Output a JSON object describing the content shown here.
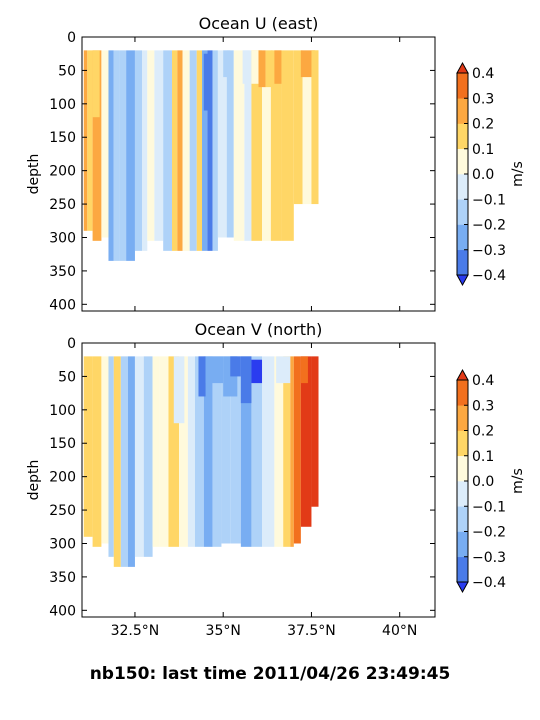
{
  "figure": {
    "suptitle": "nb150: last time 2011/04/26 23:49:45"
  },
  "chart_data": [
    {
      "type": "heatmap",
      "title": "Ocean U (east)",
      "ylabel": "depth",
      "xlim": [
        31.0,
        41.0
      ],
      "ylim": [
        410,
        0
      ],
      "xticks": [
        32.5,
        35,
        37.5,
        40
      ],
      "xtick_labels": [
        "32.5°N",
        "35°N",
        "37.5°N",
        "40°N"
      ],
      "yticks": [
        0,
        50,
        100,
        150,
        200,
        250,
        300,
        350,
        400
      ],
      "ytick_labels": [
        "0",
        "50",
        "100",
        "150",
        "200",
        "250",
        "300",
        "350",
        "400"
      ],
      "colorbar": {
        "label": "m/s",
        "levels": [
          -0.4,
          -0.3,
          -0.2,
          -0.1,
          0.0,
          0.1,
          0.2,
          0.3,
          0.4
        ],
        "tick_labels": [
          "−0.4",
          "−0.3",
          "−0.2",
          "−0.1",
          "0.0",
          "0.1",
          "0.2",
          "0.3",
          "0.4"
        ],
        "colors": [
          "#2a3cf0",
          "#4a7be8",
          "#78adf2",
          "#aed2f8",
          "#dcecfa",
          "#fffadc",
          "#ffd666",
          "#fca841",
          "#f2701e",
          "#e23a17"
        ],
        "extend": "both"
      },
      "bands": [
        {
          "x0": 31.05,
          "x1": 31.15,
          "depth_top": 20,
          "depth_bottom": 290,
          "value": 0.25
        },
        {
          "x0": 31.15,
          "x1": 31.3,
          "depth_top": 20,
          "depth_bottom": 290,
          "value": 0.15
        },
        {
          "x0": 31.3,
          "x1": 31.55,
          "depth_top": 20,
          "depth_bottom": 305,
          "value": 0.25
        },
        {
          "x0": 31.55,
          "x1": 31.75,
          "depth_top": 20,
          "depth_bottom": 300,
          "value": 0.05
        },
        {
          "x0": 31.75,
          "x1": 31.9,
          "depth_top": 20,
          "depth_bottom": 335,
          "value": -0.25
        },
        {
          "x0": 31.9,
          "x1": 32.05,
          "depth_top": 20,
          "depth_bottom": 335,
          "value": -0.15
        },
        {
          "x0": 32.05,
          "x1": 32.25,
          "depth_top": 20,
          "depth_bottom": 335,
          "value": -0.15
        },
        {
          "x0": 32.25,
          "x1": 32.5,
          "depth_top": 20,
          "depth_bottom": 335,
          "value": -0.25
        },
        {
          "x0": 32.5,
          "x1": 32.7,
          "depth_top": 20,
          "depth_bottom": 320,
          "value": -0.15
        },
        {
          "x0": 32.7,
          "x1": 32.85,
          "depth_top": 20,
          "depth_bottom": 320,
          "value": -0.05
        },
        {
          "x0": 32.85,
          "x1": 33.05,
          "depth_top": 20,
          "depth_bottom": 305,
          "value": 0.05
        },
        {
          "x0": 33.05,
          "x1": 33.3,
          "depth_top": 20,
          "depth_bottom": 305,
          "value": -0.05
        },
        {
          "x0": 33.3,
          "x1": 33.55,
          "depth_top": 20,
          "depth_bottom": 320,
          "value": -0.15
        },
        {
          "x0": 33.55,
          "x1": 33.7,
          "depth_top": 20,
          "depth_bottom": 320,
          "value": 0.15
        },
        {
          "x0": 33.7,
          "x1": 33.85,
          "depth_top": 20,
          "depth_bottom": 320,
          "value": 0.25
        },
        {
          "x0": 33.85,
          "x1": 34.05,
          "depth_top": 20,
          "depth_bottom": 320,
          "value": 0.05
        },
        {
          "x0": 34.05,
          "x1": 34.25,
          "depth_top": 20,
          "depth_bottom": 320,
          "value": -0.15
        },
        {
          "x0": 34.25,
          "x1": 34.4,
          "depth_top": 20,
          "depth_bottom": 320,
          "value": 0.15
        },
        {
          "x0": 34.4,
          "x1": 34.55,
          "depth_top": 20,
          "depth_bottom": 320,
          "value": -0.25
        },
        {
          "x0": 34.55,
          "x1": 34.7,
          "depth_top": 20,
          "depth_bottom": 320,
          "value": -0.35
        },
        {
          "x0": 34.7,
          "x1": 34.85,
          "depth_top": 20,
          "depth_bottom": 320,
          "value": -0.15
        },
        {
          "x0": 34.85,
          "x1": 35.1,
          "depth_top": 20,
          "depth_bottom": 300,
          "value": -0.05
        },
        {
          "x0": 35.1,
          "x1": 35.3,
          "depth_top": 20,
          "depth_bottom": 300,
          "value": -0.15
        },
        {
          "x0": 35.3,
          "x1": 35.6,
          "depth_top": 20,
          "depth_bottom": 305,
          "value": 0.05
        },
        {
          "x0": 35.6,
          "x1": 35.8,
          "depth_top": 20,
          "depth_bottom": 305,
          "value": -0.05
        },
        {
          "x0": 35.8,
          "x1": 36.1,
          "depth_top": 20,
          "depth_bottom": 305,
          "value": 0.15
        },
        {
          "x0": 36.1,
          "x1": 36.35,
          "depth_top": 20,
          "depth_bottom": 305,
          "value": 0.05
        },
        {
          "x0": 36.35,
          "x1": 36.65,
          "depth_top": 20,
          "depth_bottom": 305,
          "value": 0.15
        },
        {
          "x0": 36.65,
          "x1": 37.0,
          "depth_top": 20,
          "depth_bottom": 305,
          "value": 0.15
        },
        {
          "x0": 37.0,
          "x1": 37.25,
          "depth_top": 20,
          "depth_bottom": 250,
          "value": 0.15
        },
        {
          "x0": 37.25,
          "x1": 37.5,
          "depth_top": 20,
          "depth_bottom": 250,
          "value": 0.05
        },
        {
          "x0": 37.5,
          "x1": 37.7,
          "depth_top": 20,
          "depth_bottom": 250,
          "value": 0.15
        }
      ],
      "patches": [
        {
          "x0": 31.3,
          "x1": 31.5,
          "depth_top": 20,
          "depth_bottom": 120,
          "value": 0.15
        },
        {
          "x0": 34.45,
          "x1": 34.6,
          "depth_top": 25,
          "depth_bottom": 110,
          "value": -0.35
        },
        {
          "x0": 35.0,
          "x1": 35.2,
          "depth_top": 20,
          "depth_bottom": 60,
          "value": -0.15
        },
        {
          "x0": 35.55,
          "x1": 35.75,
          "depth_top": 20,
          "depth_bottom": 70,
          "value": -0.05
        },
        {
          "x0": 35.8,
          "x1": 36.1,
          "depth_top": 20,
          "depth_bottom": 70,
          "value": 0.05
        },
        {
          "x0": 36.0,
          "x1": 36.2,
          "depth_top": 20,
          "depth_bottom": 75,
          "value": 0.25
        },
        {
          "x0": 36.2,
          "x1": 36.4,
          "depth_top": 20,
          "depth_bottom": 75,
          "value": 0.15
        },
        {
          "x0": 36.45,
          "x1": 36.65,
          "depth_top": 20,
          "depth_bottom": 70,
          "value": 0.25
        },
        {
          "x0": 37.2,
          "x1": 37.6,
          "depth_top": 20,
          "depth_bottom": 60,
          "value": 0.25
        },
        {
          "x0": 37.5,
          "x1": 37.7,
          "depth_top": 20,
          "depth_bottom": 110,
          "value": 0.15
        }
      ]
    },
    {
      "type": "heatmap",
      "title": "Ocean V (north)",
      "ylabel": "depth",
      "xlim": [
        31.0,
        41.0
      ],
      "ylim": [
        410,
        0
      ],
      "xticks": [
        32.5,
        35,
        37.5,
        40
      ],
      "xtick_labels": [
        "32.5°N",
        "35°N",
        "37.5°N",
        "40°N"
      ],
      "yticks": [
        0,
        50,
        100,
        150,
        200,
        250,
        300,
        350,
        400
      ],
      "ytick_labels": [
        "0",
        "50",
        "100",
        "150",
        "200",
        "250",
        "300",
        "350",
        "400"
      ],
      "colorbar": {
        "label": "m/s",
        "levels": [
          -0.4,
          -0.3,
          -0.2,
          -0.1,
          0.0,
          0.1,
          0.2,
          0.3,
          0.4
        ],
        "tick_labels": [
          "−0.4",
          "−0.3",
          "−0.2",
          "−0.1",
          "0.0",
          "0.1",
          "0.2",
          "0.3",
          "0.4"
        ],
        "colors": [
          "#2a3cf0",
          "#4a7be8",
          "#78adf2",
          "#aed2f8",
          "#dcecfa",
          "#fffadc",
          "#ffd666",
          "#fca841",
          "#f2701e",
          "#e23a17"
        ],
        "extend": "both"
      },
      "bands": [
        {
          "x0": 31.05,
          "x1": 31.3,
          "depth_top": 20,
          "depth_bottom": 290,
          "value": 0.15
        },
        {
          "x0": 31.3,
          "x1": 31.55,
          "depth_top": 20,
          "depth_bottom": 305,
          "value": 0.15
        },
        {
          "x0": 31.55,
          "x1": 31.75,
          "depth_top": 20,
          "depth_bottom": 300,
          "value": 0.05
        },
        {
          "x0": 31.75,
          "x1": 31.9,
          "depth_top": 20,
          "depth_bottom": 320,
          "value": -0.15
        },
        {
          "x0": 31.9,
          "x1": 32.1,
          "depth_top": 20,
          "depth_bottom": 335,
          "value": 0.15
        },
        {
          "x0": 32.1,
          "x1": 32.3,
          "depth_top": 20,
          "depth_bottom": 335,
          "value": -0.15
        },
        {
          "x0": 32.3,
          "x1": 32.5,
          "depth_top": 20,
          "depth_bottom": 335,
          "value": -0.25
        },
        {
          "x0": 32.5,
          "x1": 32.75,
          "depth_top": 20,
          "depth_bottom": 320,
          "value": -0.05
        },
        {
          "x0": 32.75,
          "x1": 33.0,
          "depth_top": 20,
          "depth_bottom": 320,
          "value": -0.15
        },
        {
          "x0": 33.0,
          "x1": 33.2,
          "depth_top": 20,
          "depth_bottom": 305,
          "value": 0.05
        },
        {
          "x0": 33.2,
          "x1": 33.45,
          "depth_top": 20,
          "depth_bottom": 305,
          "value": 0.05
        },
        {
          "x0": 33.45,
          "x1": 33.75,
          "depth_top": 20,
          "depth_bottom": 305,
          "value": 0.15
        },
        {
          "x0": 33.75,
          "x1": 34.0,
          "depth_top": 20,
          "depth_bottom": 305,
          "value": 0.05
        },
        {
          "x0": 34.0,
          "x1": 34.2,
          "depth_top": 20,
          "depth_bottom": 305,
          "value": -0.05
        },
        {
          "x0": 34.2,
          "x1": 34.45,
          "depth_top": 20,
          "depth_bottom": 305,
          "value": -0.15
        },
        {
          "x0": 34.45,
          "x1": 34.7,
          "depth_top": 20,
          "depth_bottom": 305,
          "value": -0.25
        },
        {
          "x0": 34.7,
          "x1": 34.95,
          "depth_top": 20,
          "depth_bottom": 305,
          "value": -0.15
        },
        {
          "x0": 34.95,
          "x1": 35.2,
          "depth_top": 20,
          "depth_bottom": 300,
          "value": -0.15
        },
        {
          "x0": 35.2,
          "x1": 35.5,
          "depth_top": 20,
          "depth_bottom": 300,
          "value": -0.15
        },
        {
          "x0": 35.5,
          "x1": 35.8,
          "depth_top": 20,
          "depth_bottom": 305,
          "value": -0.25
        },
        {
          "x0": 35.8,
          "x1": 36.1,
          "depth_top": 20,
          "depth_bottom": 305,
          "value": -0.15
        },
        {
          "x0": 36.1,
          "x1": 36.45,
          "depth_top": 20,
          "depth_bottom": 305,
          "value": -0.05
        },
        {
          "x0": 36.45,
          "x1": 36.7,
          "depth_top": 20,
          "depth_bottom": 305,
          "value": 0.05
        },
        {
          "x0": 36.7,
          "x1": 36.9,
          "depth_top": 20,
          "depth_bottom": 305,
          "value": 0.15
        },
        {
          "x0": 36.9,
          "x1": 37.0,
          "depth_top": 20,
          "depth_bottom": 305,
          "value": 0.25
        },
        {
          "x0": 37.0,
          "x1": 37.2,
          "depth_top": 20,
          "depth_bottom": 300,
          "value": 0.35
        },
        {
          "x0": 37.2,
          "x1": 37.5,
          "depth_top": 20,
          "depth_bottom": 275,
          "value": 0.45
        },
        {
          "x0": 37.5,
          "x1": 37.7,
          "depth_top": 20,
          "depth_bottom": 245,
          "value": 0.45
        }
      ],
      "patches": [
        {
          "x0": 33.6,
          "x1": 33.9,
          "depth_top": 20,
          "depth_bottom": 120,
          "value": -0.05
        },
        {
          "x0": 34.3,
          "x1": 34.5,
          "depth_top": 20,
          "depth_bottom": 80,
          "value": -0.35
        },
        {
          "x0": 34.5,
          "x1": 35.0,
          "depth_top": 20,
          "depth_bottom": 60,
          "value": -0.25
        },
        {
          "x0": 35.0,
          "x1": 35.4,
          "depth_top": 20,
          "depth_bottom": 80,
          "value": -0.25
        },
        {
          "x0": 35.2,
          "x1": 35.5,
          "depth_top": 20,
          "depth_bottom": 50,
          "value": -0.35
        },
        {
          "x0": 35.5,
          "x1": 35.8,
          "depth_top": 20,
          "depth_bottom": 90,
          "value": -0.35
        },
        {
          "x0": 35.8,
          "x1": 36.1,
          "depth_top": 25,
          "depth_bottom": 60,
          "value": -0.45
        },
        {
          "x0": 36.5,
          "x1": 36.9,
          "depth_top": 20,
          "depth_bottom": 60,
          "value": -0.05
        },
        {
          "x0": 37.2,
          "x1": 37.4,
          "depth_top": 20,
          "depth_bottom": 60,
          "value": 0.35
        }
      ]
    }
  ]
}
